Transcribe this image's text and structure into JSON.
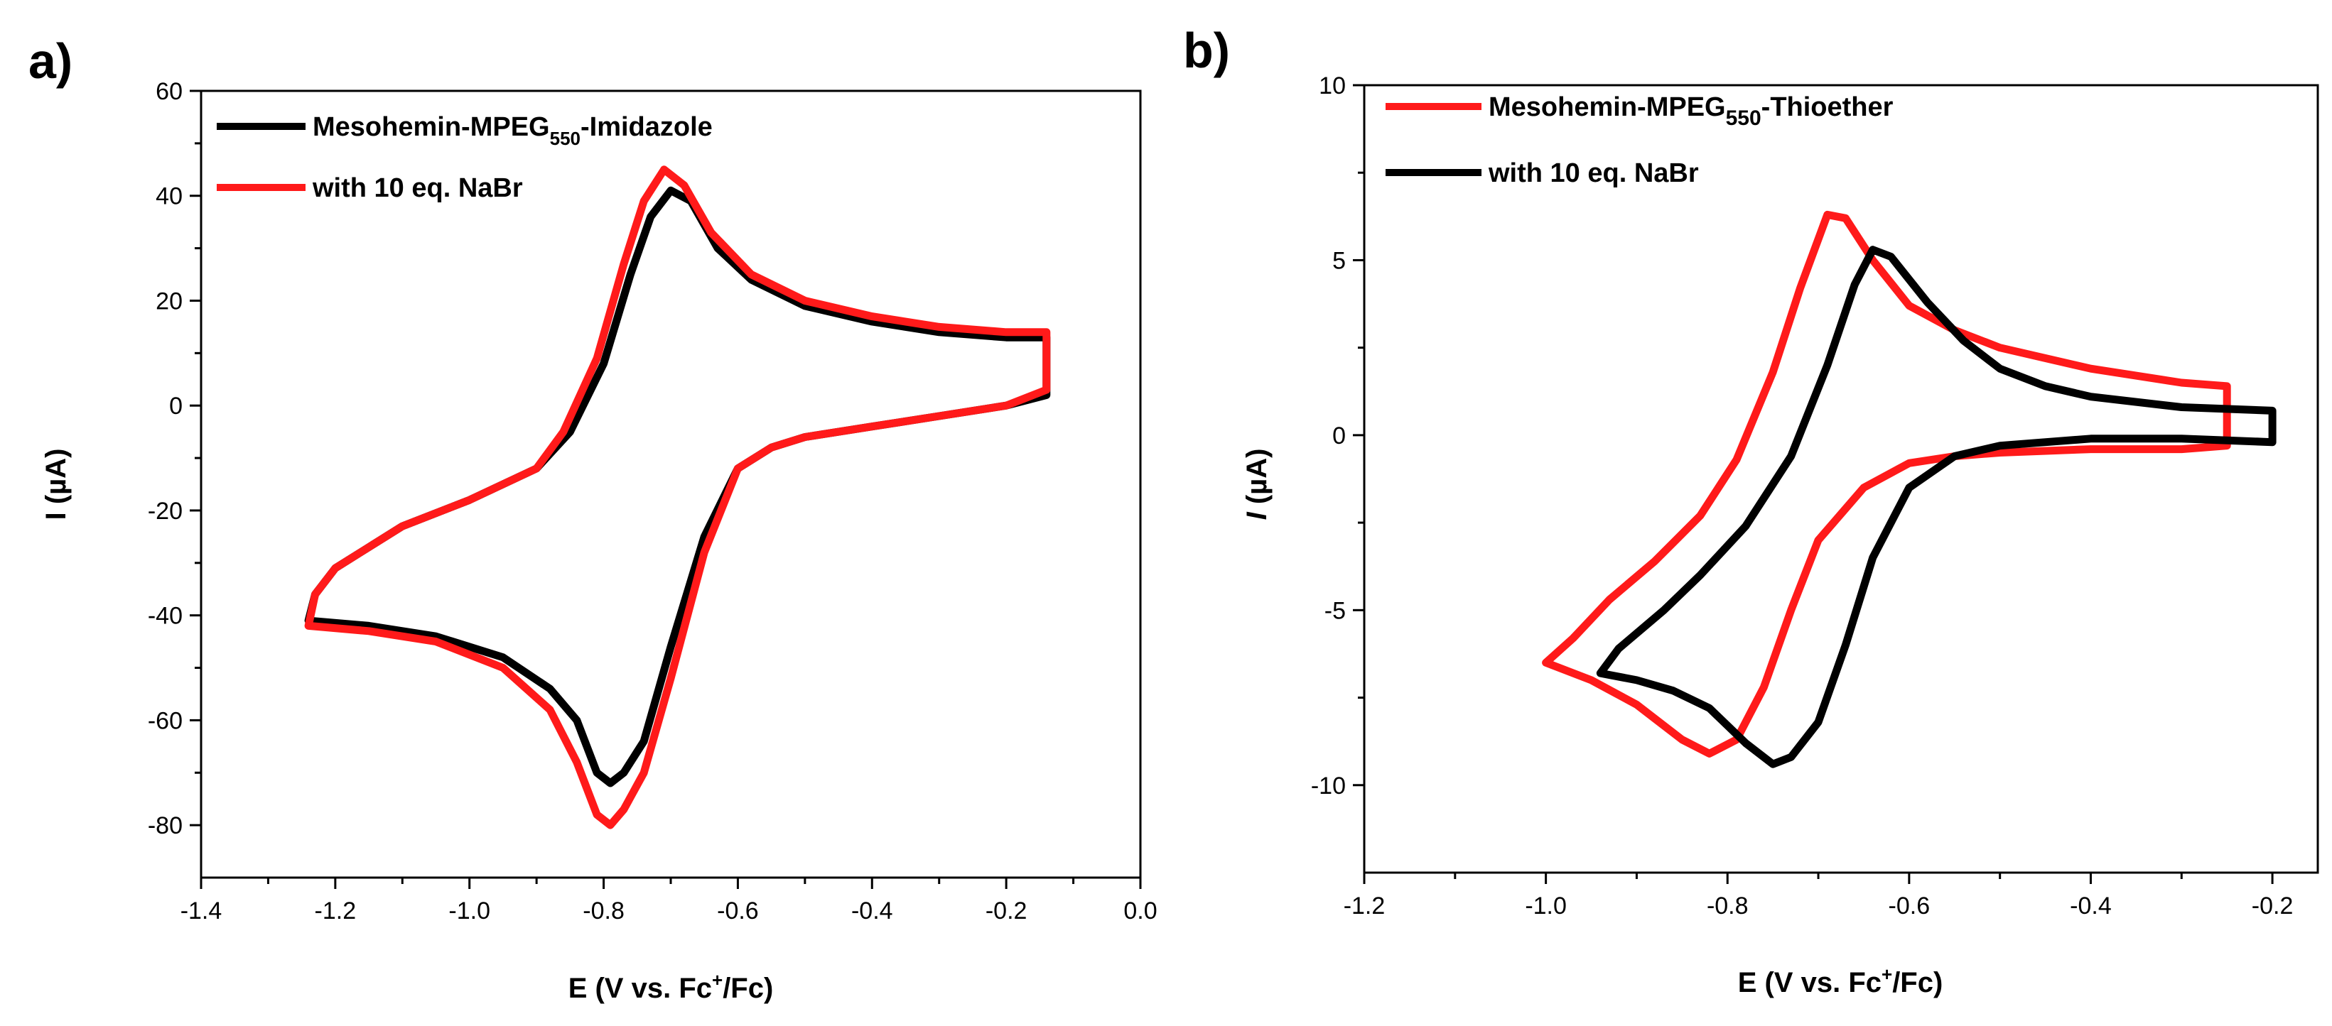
{
  "colors": {
    "black_series": "#000000",
    "red_series": "#ff1a1a"
  },
  "chart_data": [
    {
      "type": "line",
      "panel_label": "a)",
      "xlabel": {
        "pre": "E (V vs. Fc",
        "sup": "+",
        "post": "/Fc)"
      },
      "ylabel": "I (µA)",
      "xlim": [
        -1.4,
        0.0
      ],
      "ylim": [
        -90,
        60
      ],
      "xticks": [
        -1.4,
        -1.2,
        -1.0,
        -0.8,
        -0.6,
        -0.4,
        -0.2,
        0.0
      ],
      "xtick_labels": [
        "-1.4",
        "-1.2",
        "-1.0",
        "-0.8",
        "-0.6",
        "-0.4",
        "-0.2",
        "0.0"
      ],
      "yticks": [
        60,
        40,
        20,
        0,
        -20,
        -40,
        -60,
        -80
      ],
      "ytick_labels": [
        "60",
        "40",
        "20",
        "0",
        "-20",
        "-40",
        "-60",
        "-80"
      ],
      "legend_position": "top-left",
      "series": [
        {
          "name_main": "Mesohemin-MPEG",
          "name_sub": "550",
          "name_tail": "-Imidazole",
          "color": "#000000",
          "points": [
            [
              -0.14,
              2
            ],
            [
              -0.2,
              0
            ],
            [
              -0.3,
              -2
            ],
            [
              -0.4,
              -4
            ],
            [
              -0.5,
              -6
            ],
            [
              -0.55,
              -8
            ],
            [
              -0.6,
              -12
            ],
            [
              -0.65,
              -25
            ],
            [
              -0.7,
              -46
            ],
            [
              -0.74,
              -64
            ],
            [
              -0.77,
              -70
            ],
            [
              -0.79,
              -72
            ],
            [
              -0.81,
              -70
            ],
            [
              -0.84,
              -60
            ],
            [
              -0.88,
              -54
            ],
            [
              -0.95,
              -48
            ],
            [
              -1.05,
              -44
            ],
            [
              -1.15,
              -42
            ],
            [
              -1.24,
              -41
            ],
            [
              -1.23,
              -36
            ],
            [
              -1.2,
              -31
            ],
            [
              -1.15,
              -27
            ],
            [
              -1.1,
              -23
            ],
            [
              -1.0,
              -18
            ],
            [
              -0.9,
              -12
            ],
            [
              -0.85,
              -5
            ],
            [
              -0.8,
              8
            ],
            [
              -0.76,
              25
            ],
            [
              -0.73,
              36
            ],
            [
              -0.7,
              41
            ],
            [
              -0.67,
              39
            ],
            [
              -0.63,
              30
            ],
            [
              -0.58,
              24
            ],
            [
              -0.5,
              19
            ],
            [
              -0.4,
              16
            ],
            [
              -0.3,
              14
            ],
            [
              -0.2,
              13
            ],
            [
              -0.14,
              13
            ]
          ]
        },
        {
          "name_main": "with 10 eq. NaBr",
          "name_sub": "",
          "name_tail": "",
          "color": "#ff1a1a",
          "points": [
            [
              -0.14,
              3
            ],
            [
              -0.2,
              0
            ],
            [
              -0.3,
              -2
            ],
            [
              -0.4,
              -4
            ],
            [
              -0.5,
              -6
            ],
            [
              -0.55,
              -8
            ],
            [
              -0.6,
              -12
            ],
            [
              -0.65,
              -28
            ],
            [
              -0.7,
              -52
            ],
            [
              -0.74,
              -70
            ],
            [
              -0.77,
              -77
            ],
            [
              -0.79,
              -80
            ],
            [
              -0.81,
              -78
            ],
            [
              -0.84,
              -68
            ],
            [
              -0.88,
              -58
            ],
            [
              -0.95,
              -50
            ],
            [
              -1.05,
              -45
            ],
            [
              -1.15,
              -43
            ],
            [
              -1.24,
              -42
            ],
            [
              -1.23,
              -36
            ],
            [
              -1.2,
              -31
            ],
            [
              -1.15,
              -27
            ],
            [
              -1.1,
              -23
            ],
            [
              -1.0,
              -18
            ],
            [
              -0.9,
              -12
            ],
            [
              -0.86,
              -5
            ],
            [
              -0.81,
              9
            ],
            [
              -0.77,
              27
            ],
            [
              -0.74,
              39
            ],
            [
              -0.71,
              45
            ],
            [
              -0.68,
              42
            ],
            [
              -0.64,
              33
            ],
            [
              -0.58,
              25
            ],
            [
              -0.5,
              20
            ],
            [
              -0.4,
              17
            ],
            [
              -0.3,
              15
            ],
            [
              -0.2,
              14
            ],
            [
              -0.14,
              14
            ]
          ]
        }
      ]
    },
    {
      "type": "line",
      "panel_label": "b)",
      "xlabel": {
        "pre": "E (V vs. Fc",
        "sup": "+",
        "post": "/Fc)"
      },
      "ylabel_italic": "I",
      "ylabel_rest": " (µA)",
      "xlim": [
        -1.2,
        -0.15
      ],
      "ylim": [
        -12.5,
        10
      ],
      "xticks": [
        -1.2,
        -1.0,
        -0.8,
        -0.6,
        -0.4,
        -0.2
      ],
      "xtick_labels": [
        "-1.2",
        "-1.0",
        "-0.8",
        "-0.6",
        "-0.4",
        "-0.2"
      ],
      "yticks": [
        10,
        5,
        0,
        -5,
        -10
      ],
      "ytick_labels": [
        "10",
        "5",
        "0",
        "-5",
        "-10"
      ],
      "legend_position": "top-left",
      "series": [
        {
          "name_main": "Mesohemin-MPEG",
          "name_sub": "550",
          "name_tail": "-Thioether",
          "color": "#ff1a1a",
          "points": [
            [
              -0.25,
              -0.3
            ],
            [
              -0.3,
              -0.4
            ],
            [
              -0.4,
              -0.4
            ],
            [
              -0.5,
              -0.5
            ],
            [
              -0.55,
              -0.6
            ],
            [
              -0.6,
              -0.8
            ],
            [
              -0.65,
              -1.5
            ],
            [
              -0.7,
              -3
            ],
            [
              -0.73,
              -5
            ],
            [
              -0.76,
              -7.2
            ],
            [
              -0.79,
              -8.7
            ],
            [
              -0.82,
              -9.1
            ],
            [
              -0.85,
              -8.7
            ],
            [
              -0.9,
              -7.7
            ],
            [
              -0.95,
              -7.0
            ],
            [
              -1.0,
              -6.5
            ],
            [
              -0.97,
              -5.8
            ],
            [
              -0.93,
              -4.7
            ],
            [
              -0.88,
              -3.6
            ],
            [
              -0.83,
              -2.3
            ],
            [
              -0.79,
              -0.7
            ],
            [
              -0.75,
              1.8
            ],
            [
              -0.72,
              4.2
            ],
            [
              -0.69,
              6.3
            ],
            [
              -0.67,
              6.2
            ],
            [
              -0.64,
              5.0
            ],
            [
              -0.6,
              3.7
            ],
            [
              -0.55,
              3.0
            ],
            [
              -0.5,
              2.5
            ],
            [
              -0.4,
              1.9
            ],
            [
              -0.3,
              1.5
            ],
            [
              -0.25,
              1.4
            ]
          ]
        },
        {
          "name_main": "with 10 eq. NaBr",
          "name_sub": "",
          "name_tail": "",
          "color": "#000000",
          "points": [
            [
              -0.2,
              -0.2
            ],
            [
              -0.3,
              -0.1
            ],
            [
              -0.4,
              -0.1
            ],
            [
              -0.5,
              -0.3
            ],
            [
              -0.55,
              -0.6
            ],
            [
              -0.6,
              -1.5
            ],
            [
              -0.64,
              -3.5
            ],
            [
              -0.67,
              -6
            ],
            [
              -0.7,
              -8.2
            ],
            [
              -0.73,
              -9.2
            ],
            [
              -0.75,
              -9.4
            ],
            [
              -0.78,
              -8.8
            ],
            [
              -0.82,
              -7.8
            ],
            [
              -0.86,
              -7.3
            ],
            [
              -0.9,
              -7.0
            ],
            [
              -0.94,
              -6.8
            ],
            [
              -0.92,
              -6.1
            ],
            [
              -0.87,
              -5.0
            ],
            [
              -0.83,
              -4.0
            ],
            [
              -0.78,
              -2.6
            ],
            [
              -0.73,
              -0.6
            ],
            [
              -0.69,
              2.0
            ],
            [
              -0.66,
              4.3
            ],
            [
              -0.64,
              5.3
            ],
            [
              -0.62,
              5.1
            ],
            [
              -0.58,
              3.8
            ],
            [
              -0.54,
              2.7
            ],
            [
              -0.5,
              1.9
            ],
            [
              -0.45,
              1.4
            ],
            [
              -0.4,
              1.1
            ],
            [
              -0.3,
              0.8
            ],
            [
              -0.2,
              0.7
            ]
          ]
        }
      ]
    }
  ]
}
